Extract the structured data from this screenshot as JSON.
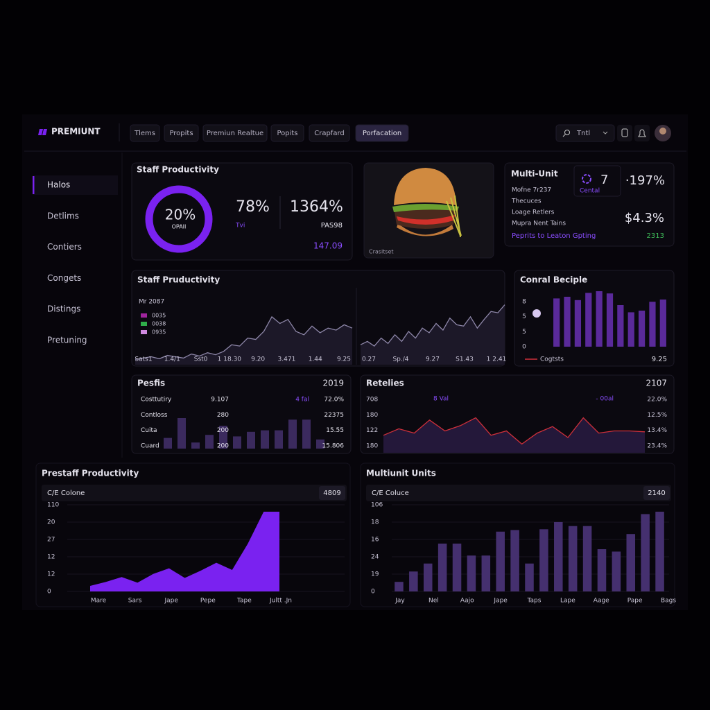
{
  "header": {
    "logo": "PREMIUNT",
    "tabs": [
      {
        "label": "Tlems"
      },
      {
        "label": "Propits"
      },
      {
        "label": "Premiun Realtue"
      },
      {
        "label": "Popits"
      },
      {
        "label": "Crapfard"
      },
      {
        "label": "Porfacation",
        "active": true
      }
    ],
    "search": "Tntl"
  },
  "sidebar": {
    "items": [
      {
        "label": "Halos",
        "active": true
      },
      {
        "label": "Detlims"
      },
      {
        "label": "Contiers"
      },
      {
        "label": "Congets"
      },
      {
        "label": "Distings"
      },
      {
        "label": "Pretuning"
      }
    ]
  },
  "staff_card": {
    "title": "Staff Productivity",
    "donut_value": "20%",
    "donut_caption": "OPAII",
    "kpi1": "78%",
    "kpi1_caption": "Tvi",
    "kpi2": "1364%",
    "kpi2_caption": "PAS98",
    "footer": "147.09"
  },
  "image_card": {
    "caption": "Crasitset"
  },
  "multi_unit_card": {
    "title": "Multi-Unit",
    "count": "7",
    "count_caption": "Cental",
    "change": "·197%",
    "items": [
      "Mofne 7r237",
      "Thecuces",
      "Loage Retlers",
      "Mupra Nent Tains"
    ],
    "amount": "$4.3%",
    "link": "Peprits to Leaton Gpting",
    "link_value": "2313"
  },
  "trend_card": {
    "title": "Staff Pruductivity",
    "legend_title": "Mr 2087",
    "legend": [
      {
        "name": "0035",
        "color": "#a0249e"
      },
      {
        "name": "0038",
        "color": "#2fae4a"
      },
      {
        "name": "0935",
        "color": "#d08ae0"
      }
    ],
    "charts": [
      {
        "type": "area",
        "color": "#8d86a8",
        "fill": "#1c1828",
        "ylim": [
          0,
          100
        ],
        "values": [
          8,
          10,
          12,
          9,
          14,
          12,
          10,
          16,
          13,
          18,
          15,
          20,
          30,
          28,
          40,
          38,
          50,
          72,
          62,
          68,
          50,
          45,
          58,
          48,
          55,
          52,
          60,
          55
        ],
        "x_labels": [
          "Sats1",
          "1.4/1",
          "Sst0",
          "1 18.30",
          "9.20",
          "3.471",
          "1.44",
          "9.25"
        ]
      },
      {
        "type": "area",
        "color": "#8d86a8",
        "fill": "#1c1828",
        "ylim": [
          0,
          100
        ],
        "values": [
          30,
          35,
          28,
          40,
          32,
          45,
          35,
          50,
          40,
          55,
          48,
          62,
          52,
          70,
          60,
          58,
          72,
          55,
          68,
          80,
          78,
          90
        ],
        "x_labels": [
          "0.27",
          "Sp./4",
          "9.27",
          "S1.43",
          "1 2.41"
        ]
      }
    ]
  },
  "bar_card": {
    "title": "Conral Beciple",
    "type": "bar",
    "color": "#5a2a9a",
    "ylim": [
      0,
      100
    ],
    "values": [
      87,
      90,
      84,
      97,
      100,
      96,
      75,
      62,
      65,
      81,
      85
    ],
    "y_labels": [
      "8",
      "5",
      "5",
      "0"
    ],
    "legend": {
      "name": "Cogtsts",
      "color": "#d0303a"
    },
    "footer": "9.25"
  },
  "profits_card": {
    "title": "Pesfis",
    "year": "2019",
    "rows": [
      [
        "Costtutiry",
        "9.107",
        "4 fal",
        "72.0%"
      ],
      [
        "Contloss",
        "280",
        "22375"
      ],
      [
        "Cuita",
        "200",
        "15.55"
      ],
      [
        "Cuard",
        "200",
        "15.806"
      ]
    ],
    "chart": {
      "type": "bar",
      "color": "#3b2a5e",
      "ylim": [
        0,
        100
      ],
      "values": [
        35,
        100,
        20,
        45,
        75,
        40,
        55,
        60,
        60,
        95,
        95,
        30
      ]
    }
  },
  "retail_card": {
    "title": "Retelies",
    "year": "2107",
    "col_left": "8 Val",
    "col_right": "- 00al",
    "y_labels": [
      "708",
      "180",
      "122",
      "180"
    ],
    "percents": [
      "22.0%",
      "12.5%",
      "13.4%",
      "23.4%"
    ],
    "chart": {
      "type": "area",
      "color": "#d0303a",
      "fill": "#24183a",
      "ylim": [
        0,
        100
      ],
      "values": [
        40,
        55,
        45,
        75,
        50,
        62,
        80,
        40,
        50,
        20,
        45,
        60,
        35,
        80,
        45,
        50,
        50,
        48
      ]
    }
  },
  "prestaff_card": {
    "title": "Prestaff Productivity",
    "subtitle": "C/E Colone",
    "badge": "4809",
    "type": "area",
    "color": "#7a22f0",
    "fill": "#7a22f0",
    "ylim": [
      0,
      100
    ],
    "values": [
      7,
      12,
      18,
      11,
      22,
      29,
      17,
      26,
      36,
      27,
      60,
      100,
      100
    ],
    "y_labels": [
      "110",
      "20",
      "27",
      "12",
      "12",
      "0"
    ],
    "x_labels": [
      "Mare",
      "Sars",
      "Jape",
      "Pepe",
      "Tape",
      "Jultt .Jn"
    ]
  },
  "multiunit_card": {
    "title": "Multiunit Units",
    "subtitle": "C/E Coluce",
    "badge": "2140",
    "type": "bar",
    "color": "#45306f",
    "ylim": [
      0,
      100
    ],
    "values": [
      12,
      25,
      35,
      60,
      60,
      45,
      45,
      75,
      77,
      35,
      78,
      87,
      82,
      82,
      53,
      50,
      72,
      97,
      100
    ],
    "y_labels": [
      "106",
      "18",
      "16",
      "24",
      "19",
      "0"
    ],
    "x_labels": [
      "Jay",
      "Nel",
      "Aajo",
      "Jape",
      "Taps",
      "Lape",
      "Aage",
      "Pape",
      "Bags"
    ]
  }
}
